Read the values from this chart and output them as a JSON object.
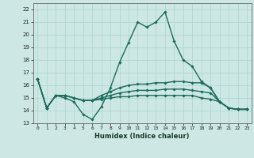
{
  "xlabel": "Humidex (Indice chaleur)",
  "bg_color": "#cde8e4",
  "grid_color": "#b0d8d0",
  "line_color": "#1a6b5a",
  "xlim": [
    -0.5,
    23.5
  ],
  "ylim": [
    13,
    22.5
  ],
  "yticks": [
    13,
    14,
    15,
    16,
    17,
    18,
    19,
    20,
    21,
    22
  ],
  "xticks": [
    0,
    1,
    2,
    3,
    4,
    5,
    6,
    7,
    8,
    9,
    10,
    11,
    12,
    13,
    14,
    15,
    16,
    17,
    18,
    19,
    20,
    21,
    22,
    23
  ],
  "series": [
    [
      16.5,
      14.2,
      15.2,
      15.0,
      14.7,
      13.7,
      13.3,
      14.3,
      15.8,
      17.8,
      19.4,
      21.0,
      20.6,
      21.0,
      21.8,
      19.5,
      18.0,
      17.5,
      16.3,
      15.8,
      14.7,
      14.2,
      14.1,
      14.1
    ],
    [
      16.5,
      14.2,
      15.2,
      15.2,
      15.0,
      14.8,
      14.8,
      15.2,
      15.5,
      15.8,
      16.0,
      16.1,
      16.1,
      16.2,
      16.2,
      16.3,
      16.3,
      16.2,
      16.2,
      15.8,
      14.7,
      14.2,
      14.1,
      14.1
    ],
    [
      16.5,
      14.2,
      15.2,
      15.2,
      15.0,
      14.8,
      14.8,
      15.0,
      15.2,
      15.4,
      15.5,
      15.6,
      15.6,
      15.6,
      15.7,
      15.7,
      15.7,
      15.6,
      15.5,
      15.4,
      14.7,
      14.2,
      14.1,
      14.1
    ],
    [
      16.5,
      14.2,
      15.2,
      15.2,
      15.0,
      14.8,
      14.8,
      14.9,
      15.0,
      15.1,
      15.1,
      15.2,
      15.2,
      15.2,
      15.2,
      15.2,
      15.2,
      15.2,
      15.0,
      14.9,
      14.7,
      14.2,
      14.1,
      14.1
    ]
  ]
}
